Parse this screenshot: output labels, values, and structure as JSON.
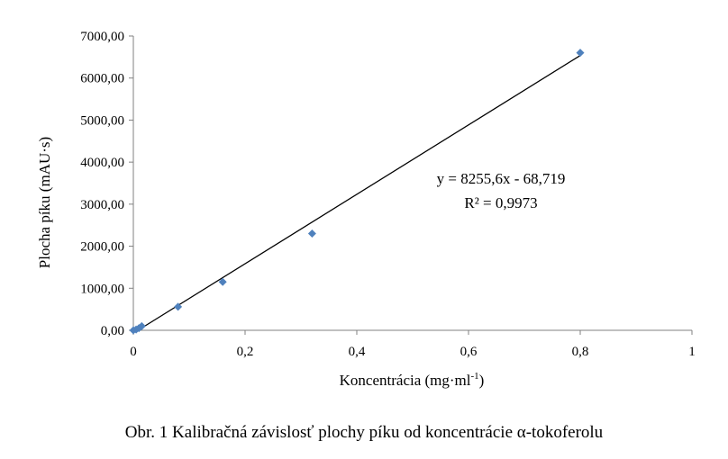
{
  "chart_data": {
    "type": "scatter",
    "xlabel": "Koncentrácia (mg·ml",
    "xlabel_sup": "-1",
    "xlabel_end": ")",
    "ylabel": "Plocha píku (mAU·s)",
    "xlim": [
      0,
      1
    ],
    "ylim": [
      0,
      7000
    ],
    "x_ticks": [
      0,
      0.2,
      0.4,
      0.6,
      0.8,
      1
    ],
    "x_tick_labels": [
      "0",
      "0,2",
      "0,4",
      "0,6",
      "0,8",
      "1"
    ],
    "y_ticks": [
      0,
      1000,
      2000,
      3000,
      4000,
      5000,
      6000,
      7000
    ],
    "y_tick_labels": [
      "0,00",
      "1000,00",
      "2000,00",
      "3000,00",
      "4000,00",
      "5000,00",
      "6000,00",
      "7000,00"
    ],
    "points": [
      {
        "x": 0.0,
        "y": 0
      },
      {
        "x": 0.005,
        "y": 20
      },
      {
        "x": 0.01,
        "y": 50
      },
      {
        "x": 0.015,
        "y": 100
      },
      {
        "x": 0.08,
        "y": 560
      },
      {
        "x": 0.16,
        "y": 1150
      },
      {
        "x": 0.32,
        "y": 2300
      },
      {
        "x": 0.8,
        "y": 6600
      }
    ],
    "trendline": {
      "slope": 8255.6,
      "intercept": -68.719,
      "x_range": [
        0,
        0.8
      ]
    },
    "equation_label": "y = 8255,6x - 68,719",
    "r2_label": "R² = 0,9973",
    "marker_color": "#4f81bd",
    "line_color": "#000000"
  },
  "caption": "Obr. 1 Kalibračná závislosť plochy píku od koncentrácie α-tokoferolu"
}
